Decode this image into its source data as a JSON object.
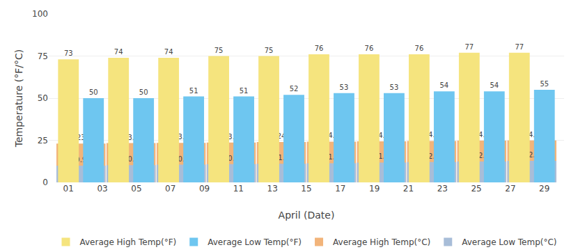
{
  "chart_data": {
    "type": "bar",
    "xlabel": "April (Date)",
    "ylabel": "Temperature (°F/°C)",
    "categories": [
      null,
      null,
      null,
      null,
      null,
      null,
      null,
      null,
      null,
      null
    ],
    "xticks": [
      {
        "value": 1,
        "label": "01"
      },
      {
        "value": 3,
        "label": "03"
      },
      {
        "value": 5,
        "label": "05"
      },
      {
        "value": 7,
        "label": "07"
      },
      {
        "value": 9,
        "label": "09"
      },
      {
        "value": 11,
        "label": "11"
      },
      {
        "value": 13,
        "label": "13"
      },
      {
        "value": 15,
        "label": "15"
      },
      {
        "value": 17,
        "label": "17"
      },
      {
        "value": 19,
        "label": "19"
      },
      {
        "value": 21,
        "label": "21"
      },
      {
        "value": 23,
        "label": "23"
      },
      {
        "value": 25,
        "label": "25"
      },
      {
        "value": 27,
        "label": "27"
      },
      {
        "value": 29,
        "label": "29"
      }
    ],
    "series": [
      {
        "name": "Average High Temp(°F)",
        "color": "#F5E47E",
        "values": [
          73,
          74,
          74,
          75,
          75,
          76,
          76,
          76,
          77,
          77
        ]
      },
      {
        "name": "Average Low Temp(°F)",
        "color": "#6EC6F0",
        "values": [
          50,
          50,
          51,
          51,
          52,
          53,
          53,
          54,
          54,
          55
        ]
      },
      {
        "name": "Average High Temp(°C)",
        "color": "#F2B47A",
        "values": [
          23,
          23.3,
          23.5,
          23.7,
          24,
          24.2,
          24.4,
          24.6,
          24.8,
          24.9
        ]
      },
      {
        "name": "Average Low Temp(°C)",
        "color": "#A8BDD8",
        "values": [
          9.9,
          10.2,
          10.5,
          10.8,
          11.1,
          11.4,
          11.8,
          12.1,
          12.4,
          12.8
        ]
      }
    ],
    "ylim": [
      0,
      100
    ],
    "yticks": [
      0,
      25,
      50,
      75,
      100
    ],
    "grid": true,
    "legend": "bottom",
    "data_labels": true
  }
}
